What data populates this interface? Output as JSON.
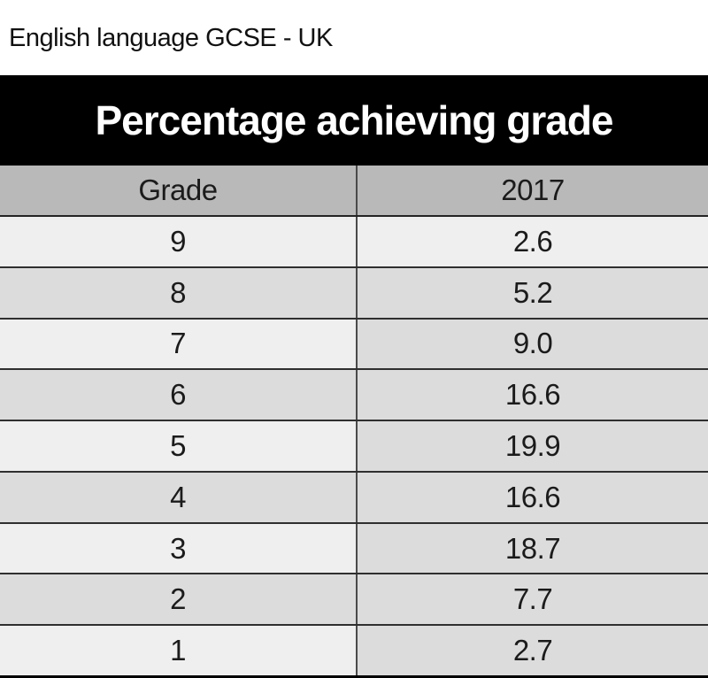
{
  "page": {
    "title": "English language GCSE - UK"
  },
  "table": {
    "banner": "Percentage achieving grade",
    "columns": [
      "Grade",
      "2017"
    ],
    "rows": [
      {
        "grade": "9",
        "value": "2.6"
      },
      {
        "grade": "8",
        "value": "5.2"
      },
      {
        "grade": "7",
        "value": "9.0"
      },
      {
        "grade": "6",
        "value": "16.6"
      },
      {
        "grade": "5",
        "value": "19.9"
      },
      {
        "grade": "4",
        "value": "16.6"
      },
      {
        "grade": "3",
        "value": "18.7"
      },
      {
        "grade": "2",
        "value": "7.7"
      },
      {
        "grade": "1",
        "value": "2.7"
      }
    ]
  },
  "colors": {
    "banner_bg": "#000000",
    "banner_text": "#ffffff",
    "header_bg": "#b9b9b9",
    "row_light": "#efefef",
    "row_dark": "#dcdcdc",
    "row_separator": "#2f2f2f",
    "column_divider": "#4a4a4a",
    "bottom_border": "#000000"
  },
  "chart_data": {
    "type": "table",
    "title": "Percentage achieving grade",
    "subtitle": "English language GCSE - UK",
    "columns": [
      "Grade",
      "2017"
    ],
    "categories": [
      "9",
      "8",
      "7",
      "6",
      "5",
      "4",
      "3",
      "2",
      "1"
    ],
    "values": [
      2.6,
      5.2,
      9.0,
      16.6,
      19.9,
      16.6,
      18.7,
      7.7,
      2.7
    ]
  }
}
